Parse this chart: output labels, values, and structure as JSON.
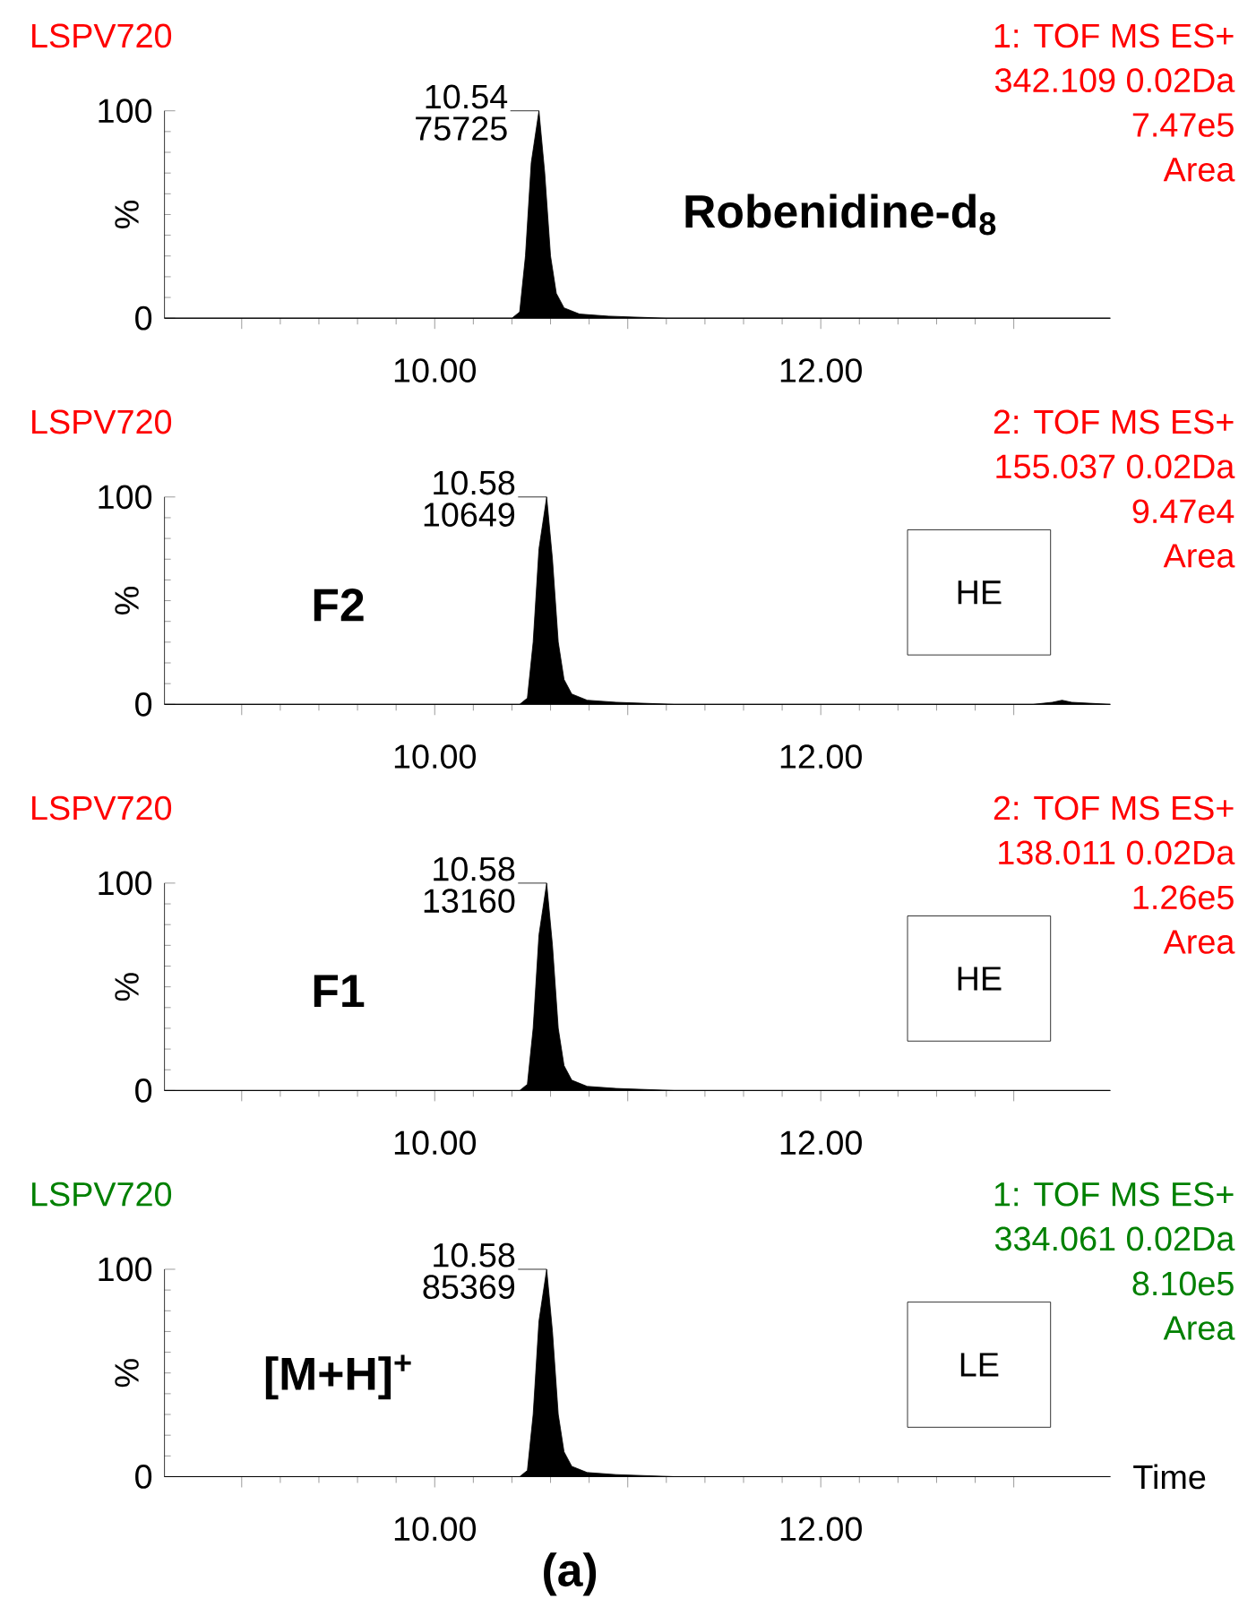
{
  "chart_data": [
    {
      "type": "area",
      "title": "LSPV720",
      "ylabel": "%",
      "color": "#000000",
      "x": [
        8.6,
        10.4,
        10.44,
        10.47,
        10.5,
        10.54,
        10.57,
        10.6,
        10.63,
        10.67,
        10.75,
        10.9,
        11.2,
        11.5,
        13.5
      ],
      "values": [
        0,
        0,
        3,
        30,
        75,
        100,
        70,
        30,
        12,
        5,
        2,
        1,
        0,
        0,
        0
      ],
      "xlim": [
        8.6,
        13.5
      ],
      "ylim": [
        0,
        100
      ],
      "xticks": [
        {
          "value": 9,
          "label": null
        },
        {
          "value": 10,
          "label": "10.00"
        },
        {
          "value": 11,
          "label": null
        },
        {
          "value": 12,
          "label": "12.00"
        },
        {
          "value": 13,
          "label": null
        }
      ],
      "yticks": [
        0,
        100
      ],
      "annotations": [
        "10.54",
        "75725",
        "1: TOF MS ES+",
        "342.109 0.02Da",
        "7.47e5",
        "Area",
        "Robenidine-d$_{8}$"
      ]
    },
    {
      "type": "area",
      "title": "LSPV720",
      "ylabel": "%",
      "color": "#000000",
      "x": [
        8.6,
        10.44,
        10.48,
        10.51,
        10.54,
        10.58,
        10.61,
        10.64,
        10.67,
        10.71,
        10.79,
        10.94,
        11.24,
        11.54,
        13.1,
        13.2,
        13.25,
        13.3,
        13.5
      ],
      "values": [
        0,
        0,
        3,
        30,
        75,
        100,
        70,
        30,
        12,
        5,
        2,
        1,
        0,
        0,
        0,
        1,
        2,
        1,
        0
      ],
      "xlim": [
        8.6,
        13.5
      ],
      "ylim": [
        0,
        100
      ],
      "xticks": [
        {
          "value": 9,
          "label": null
        },
        {
          "value": 10,
          "label": "10.00"
        },
        {
          "value": 11,
          "label": null
        },
        {
          "value": 12,
          "label": "12.00"
        },
        {
          "value": 13,
          "label": null
        }
      ],
      "yticks": [
        0,
        100
      ],
      "annotations": [
        "10.58",
        "10649",
        "2: TOF MS ES+",
        "155.037 0.02Da",
        "9.47e4",
        "Area",
        "F2",
        "HE"
      ]
    },
    {
      "type": "area",
      "title": "LSPV720",
      "ylabel": "%",
      "color": "#000000",
      "x": [
        8.6,
        10.44,
        10.48,
        10.51,
        10.54,
        10.58,
        10.61,
        10.64,
        10.67,
        10.71,
        10.79,
        10.94,
        11.24,
        11.54,
        13.5
      ],
      "values": [
        0,
        0,
        3,
        30,
        75,
        100,
        70,
        30,
        12,
        5,
        2,
        1,
        0,
        0,
        0
      ],
      "xlim": [
        8.6,
        13.5
      ],
      "ylim": [
        0,
        100
      ],
      "xticks": [
        {
          "value": 9,
          "label": null
        },
        {
          "value": 10,
          "label": "10.00"
        },
        {
          "value": 11,
          "label": null
        },
        {
          "value": 12,
          "label": "12.00"
        },
        {
          "value": 13,
          "label": null
        }
      ],
      "yticks": [
        0,
        100
      ],
      "annotations": [
        "10.58",
        "13160",
        "2: TOF MS ES+",
        "138.011 0.02Da",
        "1.26e5",
        "Area",
        "F1",
        "HE"
      ]
    },
    {
      "type": "area",
      "title": "LSPV720",
      "ylabel": "%",
      "xlabel": "Time",
      "color": "#000000",
      "x": [
        8.6,
        10.44,
        10.48,
        10.51,
        10.54,
        10.58,
        10.61,
        10.64,
        10.67,
        10.71,
        10.79,
        10.94,
        11.24,
        11.54,
        13.5
      ],
      "values": [
        0,
        0,
        3,
        30,
        75,
        100,
        70,
        30,
        12,
        5,
        2,
        1,
        0,
        0,
        0
      ],
      "xlim": [
        8.6,
        13.5
      ],
      "ylim": [
        0,
        100
      ],
      "xticks": [
        {
          "value": 9,
          "label": null
        },
        {
          "value": 10,
          "label": "10.00"
        },
        {
          "value": 11,
          "label": null
        },
        {
          "value": 12,
          "label": "12.00"
        },
        {
          "value": 13,
          "label": null
        }
      ],
      "yticks": [
        0,
        100
      ],
      "annotations": [
        "10.58",
        "85369",
        "1: TOF MS ES+",
        "334.061 0.02Da",
        "8.10e5",
        "Area",
        "[M+H]$^{+}$",
        "LE",
        "(a)"
      ]
    }
  ]
}
